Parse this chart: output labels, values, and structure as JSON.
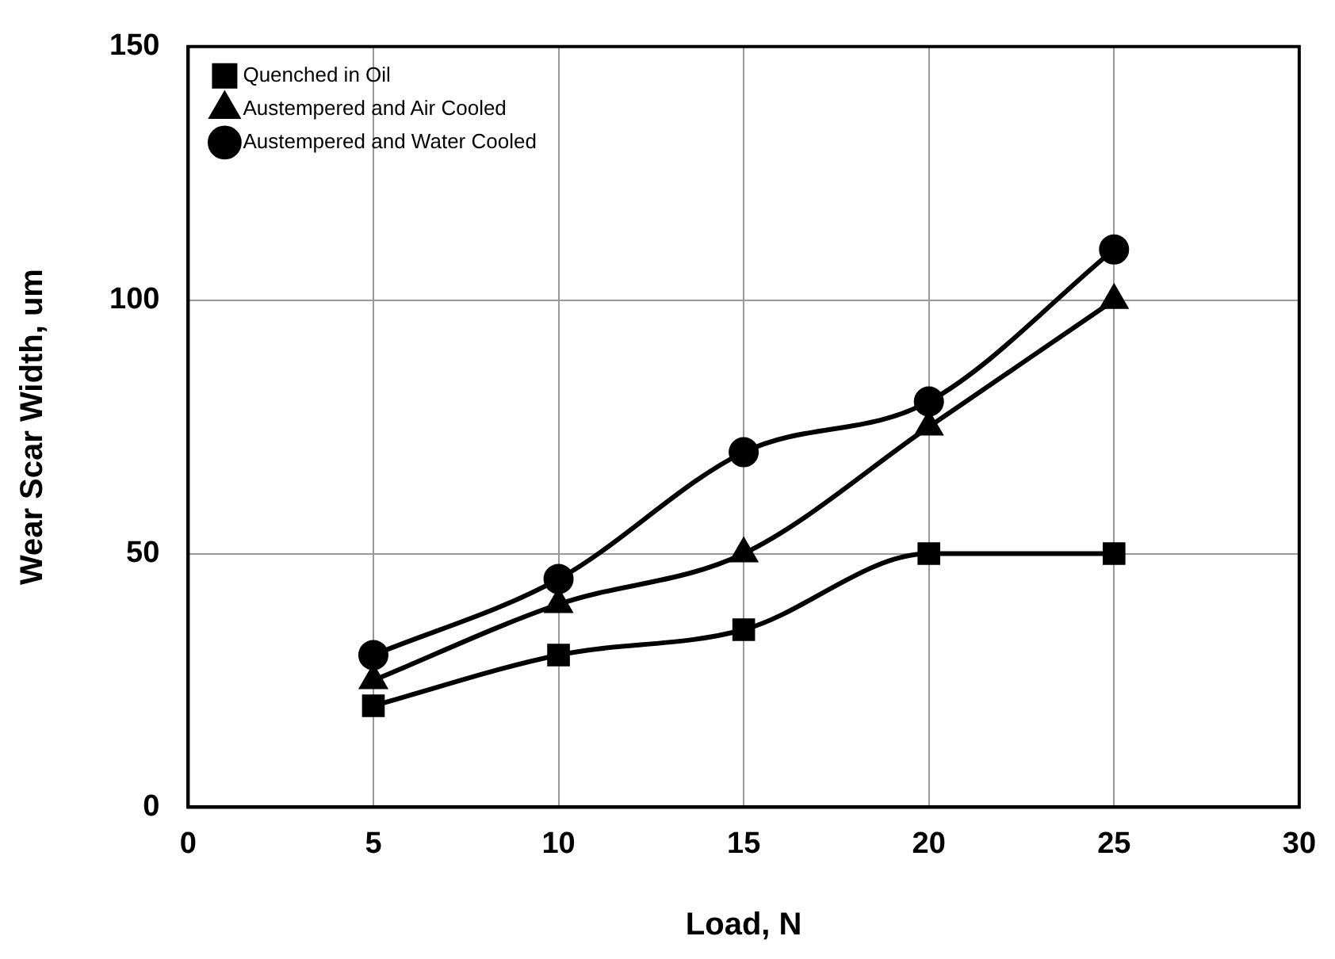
{
  "chart_data": {
    "type": "line",
    "xlabel": "Load, N",
    "ylabel": "Wear Scar Width, um",
    "x": [
      5,
      10,
      15,
      20,
      25
    ],
    "series": [
      {
        "name": "Quenched in Oil",
        "color": "#000000",
        "marker": "square",
        "values": [
          20,
          30,
          35,
          50,
          50
        ]
      },
      {
        "name": "Austempered and Air Cooled",
        "color": "#000000",
        "marker": "triangle",
        "values": [
          25,
          40,
          50,
          75,
          100
        ]
      },
      {
        "name": "Austempered and Water Cooled",
        "color": "#000000",
        "marker": "circle",
        "values": [
          30,
          45,
          70,
          80,
          110
        ]
      }
    ],
    "xlim": [
      0,
      30
    ],
    "xticks": [
      0,
      5,
      10,
      15,
      20,
      25,
      30
    ],
    "ylim": [
      0,
      150
    ],
    "yticks": [
      0,
      50,
      100,
      150
    ],
    "grid": true,
    "legend": "top left",
    "line_style": "solid"
  }
}
